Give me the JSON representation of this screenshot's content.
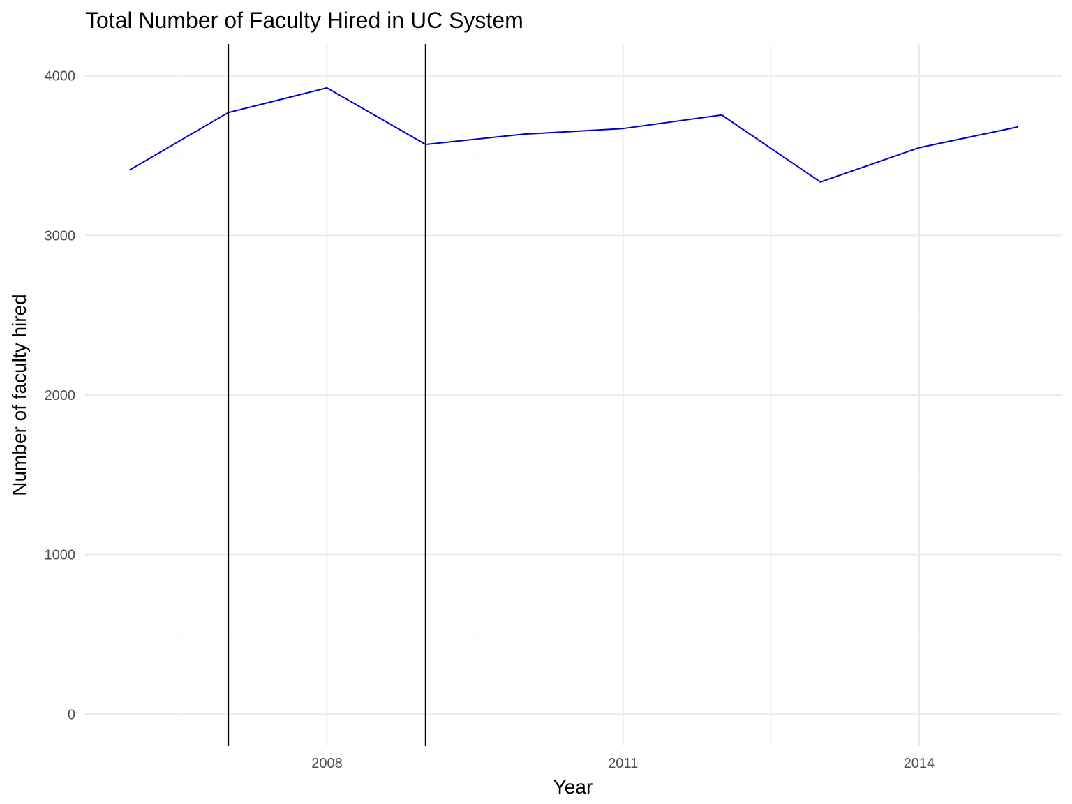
{
  "chart_data": {
    "type": "line",
    "title": "Total Number of Faculty Hired in UC System",
    "xlabel": "Year",
    "ylabel": "Number of faculty hired",
    "x": [
      2006,
      2007,
      2008,
      2009,
      2010,
      2011,
      2012,
      2013,
      2014,
      2015
    ],
    "series": [
      {
        "values": [
          3410,
          3770,
          3925,
          3570,
          3635,
          3670,
          3755,
          3335,
          3550,
          3680
        ],
        "color": "#0000cd"
      }
    ],
    "vertical_lines": [
      {
        "x": 2007,
        "color": "#000000"
      },
      {
        "x": 2009,
        "color": "#000000"
      }
    ],
    "xlim": [
      2005.55,
      2015.45
    ],
    "ylim": [
      -200,
      4200
    ],
    "x_ticks": [
      2008,
      2011,
      2014
    ],
    "x_tick_labels": [
      "2008",
      "2011",
      "2014"
    ],
    "x_minor_ticks": [
      2006.5,
      2009.5,
      2012.5
    ],
    "y_ticks": [
      0,
      1000,
      2000,
      3000,
      4000
    ],
    "y_tick_labels": [
      "0",
      "1000",
      "2000",
      "3000",
      "4000"
    ],
    "y_minor_ticks": [
      500,
      1500,
      2500,
      3500
    ],
    "grid": true,
    "legend": "none"
  }
}
